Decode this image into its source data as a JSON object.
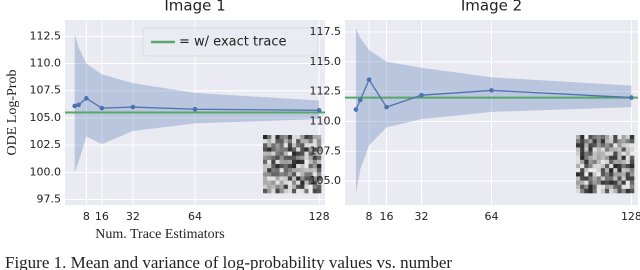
{
  "chart_data": [
    {
      "type": "line",
      "title": "Image 1",
      "ylabel": "ODE Log-Prob",
      "xlabel": "Num. Trace Estimators",
      "x": [
        2,
        4,
        8,
        16,
        32,
        64,
        128
      ],
      "series": [
        {
          "color": "#4c72b0",
          "values": [
            106.1,
            106.2,
            106.8,
            105.9,
            106.0,
            105.8,
            105.7
          ],
          "band_upper": [
            112.7,
            111.5,
            110.0,
            109.0,
            108.2,
            107.3,
            106.6
          ],
          "band_lower": [
            100.0,
            101.0,
            103.3,
            102.6,
            103.8,
            104.5,
            104.9
          ]
        }
      ],
      "reference": {
        "value": 105.5,
        "color": "#55a868",
        "name": "= w/ exact trace"
      },
      "xlim": [
        -3,
        131
      ],
      "ylim": [
        97,
        114
      ],
      "xticks": [
        8,
        16,
        32,
        64,
        128
      ],
      "yticks": [
        97.5,
        100.0,
        102.5,
        105.0,
        107.5,
        110.0,
        112.5
      ],
      "grid": true
    },
    {
      "type": "line",
      "title": "Image 2",
      "x": [
        2,
        4,
        8,
        16,
        32,
        64,
        128
      ],
      "series": [
        {
          "color": "#4c72b0",
          "values": [
            111.0,
            111.8,
            113.5,
            111.2,
            112.2,
            112.6,
            112.0
          ],
          "band_upper": [
            117.8,
            117.0,
            116.0,
            115.0,
            114.5,
            113.7,
            113.0
          ],
          "band_lower": [
            104.0,
            106.0,
            108.0,
            109.5,
            110.2,
            110.8,
            111.2
          ]
        }
      ],
      "reference": {
        "value": 112.0,
        "color": "#55a868"
      },
      "xlim": [
        -3,
        131
      ],
      "ylim": [
        103,
        118.5
      ],
      "xticks": [
        8,
        16,
        32,
        64,
        128
      ],
      "yticks": [
        105.0,
        107.5,
        110.0,
        112.5,
        115.0,
        117.5
      ],
      "grid": true
    }
  ],
  "caption": "Figure 1. Mean and variance of log-probability values vs. number"
}
